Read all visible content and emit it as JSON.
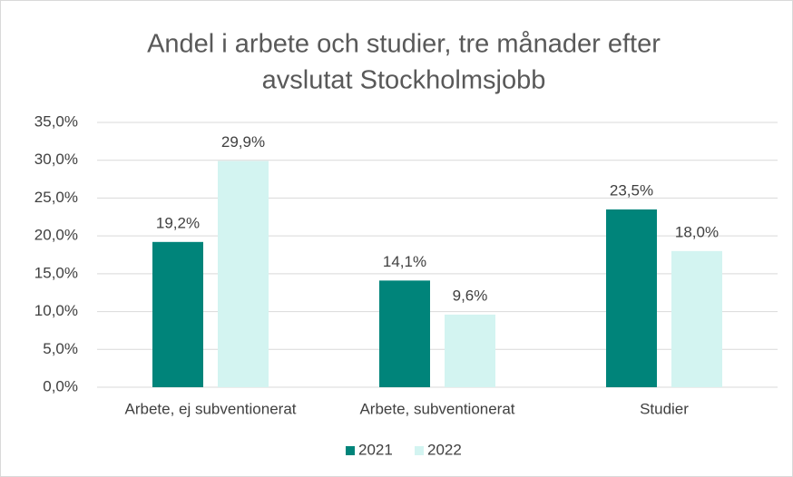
{
  "chart_data": {
    "type": "bar",
    "title": [
      "Andel i arbete och studier, tre månader efter",
      "avslutat Stockholmsjobb"
    ],
    "categories": [
      "Arbete, ej subventionerat",
      "Arbete, subventionerat",
      "Studier"
    ],
    "series": [
      {
        "name": "2021",
        "color": "#00847a",
        "values": [
          19.2,
          14.1,
          23.5
        ],
        "value_labels": [
          "19,2%",
          "14,1%",
          "23,5%"
        ]
      },
      {
        "name": "2022",
        "color": "#d3f4f1",
        "values": [
          29.9,
          9.6,
          18.0
        ],
        "value_labels": [
          "29,9%",
          "9,6%",
          "18,0%"
        ]
      }
    ],
    "ylim": [
      0,
      35
    ],
    "yticks": [
      {
        "value": 0,
        "label": "0,0%"
      },
      {
        "value": 5,
        "label": "5,0%"
      },
      {
        "value": 10,
        "label": "10,0%"
      },
      {
        "value": 15,
        "label": "15,0%"
      },
      {
        "value": 20,
        "label": "20,0%"
      },
      {
        "value": 25,
        "label": "25,0%"
      },
      {
        "value": 30,
        "label": "30,0%"
      },
      {
        "value": 35,
        "label": "35,0%"
      }
    ],
    "grid": true,
    "legend": "bottom"
  }
}
